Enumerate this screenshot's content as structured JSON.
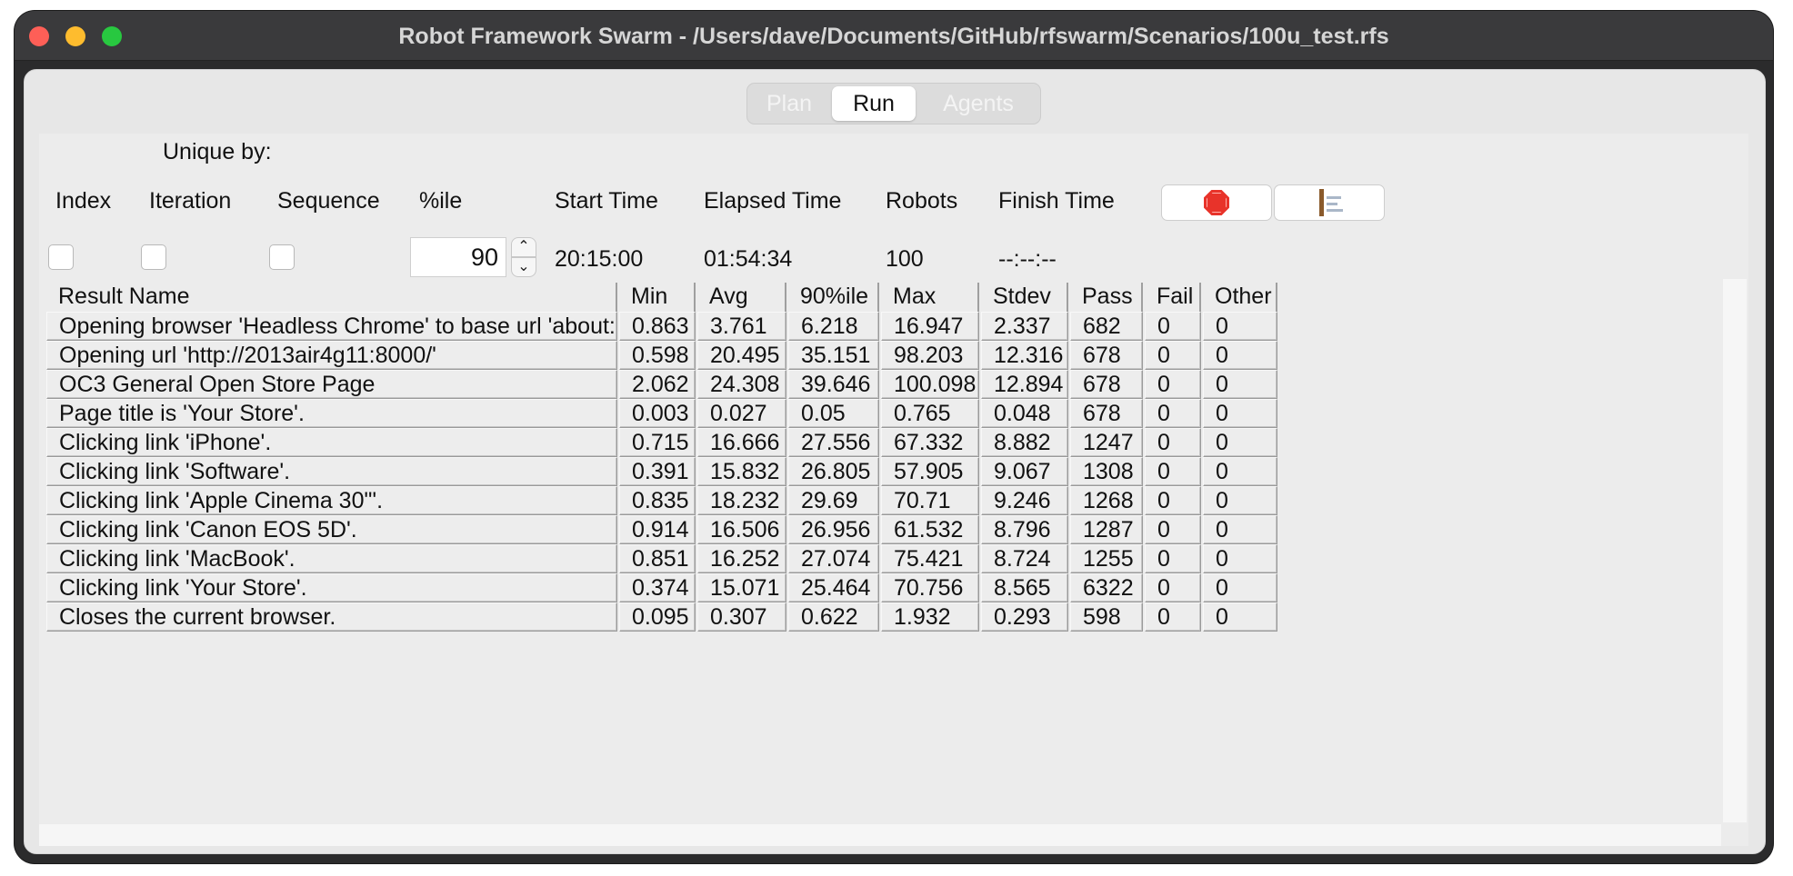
{
  "window": {
    "title": "Robot Framework Swarm - /Users/dave/Documents/GitHub/rfswarm/Scenarios/100u_test.rfs"
  },
  "tabs": [
    {
      "label": "Plan",
      "selected": false
    },
    {
      "label": "Run",
      "selected": true
    },
    {
      "label": "Agents",
      "selected": false
    }
  ],
  "controls": {
    "unique_by_label": "Unique by:",
    "index_label": "Index",
    "iteration_label": "Iteration",
    "sequence_label": "Sequence",
    "percentile_label": "%ile",
    "percentile_value": "90",
    "start_time_label": "Start Time",
    "start_time_value": "20:15:00",
    "elapsed_time_label": "Elapsed Time",
    "elapsed_time_value": "01:54:34",
    "robots_label": "Robots",
    "robots_value": "100",
    "finish_time_label": "Finish Time",
    "finish_time_value": "--:--:--",
    "stop_icon": "stop-sign-icon",
    "report_icon": "report-icon"
  },
  "table": {
    "headers": [
      "Result Name",
      "Min",
      "Avg",
      "90%ile",
      "Max",
      "Stdev",
      "Pass",
      "Fail",
      "Other"
    ],
    "rows": [
      [
        "Opening browser 'Headless Chrome' to base url 'about:blank'.",
        "0.863",
        "3.761",
        "6.218",
        "16.947",
        "2.337",
        "682",
        "0",
        "0"
      ],
      [
        "Opening url 'http://2013air4g11:8000/'",
        "0.598",
        "20.495",
        "35.151",
        "98.203",
        "12.316",
        "678",
        "0",
        "0"
      ],
      [
        "OC3 General Open Store Page",
        "2.062",
        "24.308",
        "39.646",
        "100.098",
        "12.894",
        "678",
        "0",
        "0"
      ],
      [
        "Page title is 'Your Store'.",
        "0.003",
        "0.027",
        "0.05",
        "0.765",
        "0.048",
        "678",
        "0",
        "0"
      ],
      [
        "Clicking link 'iPhone'.",
        "0.715",
        "16.666",
        "27.556",
        "67.332",
        "8.882",
        "1247",
        "0",
        "0"
      ],
      [
        "Clicking link 'Software'.",
        "0.391",
        "15.832",
        "26.805",
        "57.905",
        "9.067",
        "1308",
        "0",
        "0"
      ],
      [
        "Clicking link 'Apple Cinema 30\"'.",
        "0.835",
        "18.232",
        "29.69",
        "70.71",
        "9.246",
        "1268",
        "0",
        "0"
      ],
      [
        "Clicking link 'Canon EOS 5D'.",
        "0.914",
        "16.506",
        "26.956",
        "61.532",
        "8.796",
        "1287",
        "0",
        "0"
      ],
      [
        "Clicking link 'MacBook'.",
        "0.851",
        "16.252",
        "27.074",
        "75.421",
        "8.724",
        "1255",
        "0",
        "0"
      ],
      [
        "Clicking link 'Your Store'.",
        "0.374",
        "15.071",
        "25.464",
        "70.756",
        "8.565",
        "6322",
        "0",
        "0"
      ],
      [
        "Closes the current browser.",
        "0.095",
        "0.307",
        "0.622",
        "1.932",
        "0.293",
        "598",
        "0",
        "0"
      ]
    ]
  }
}
